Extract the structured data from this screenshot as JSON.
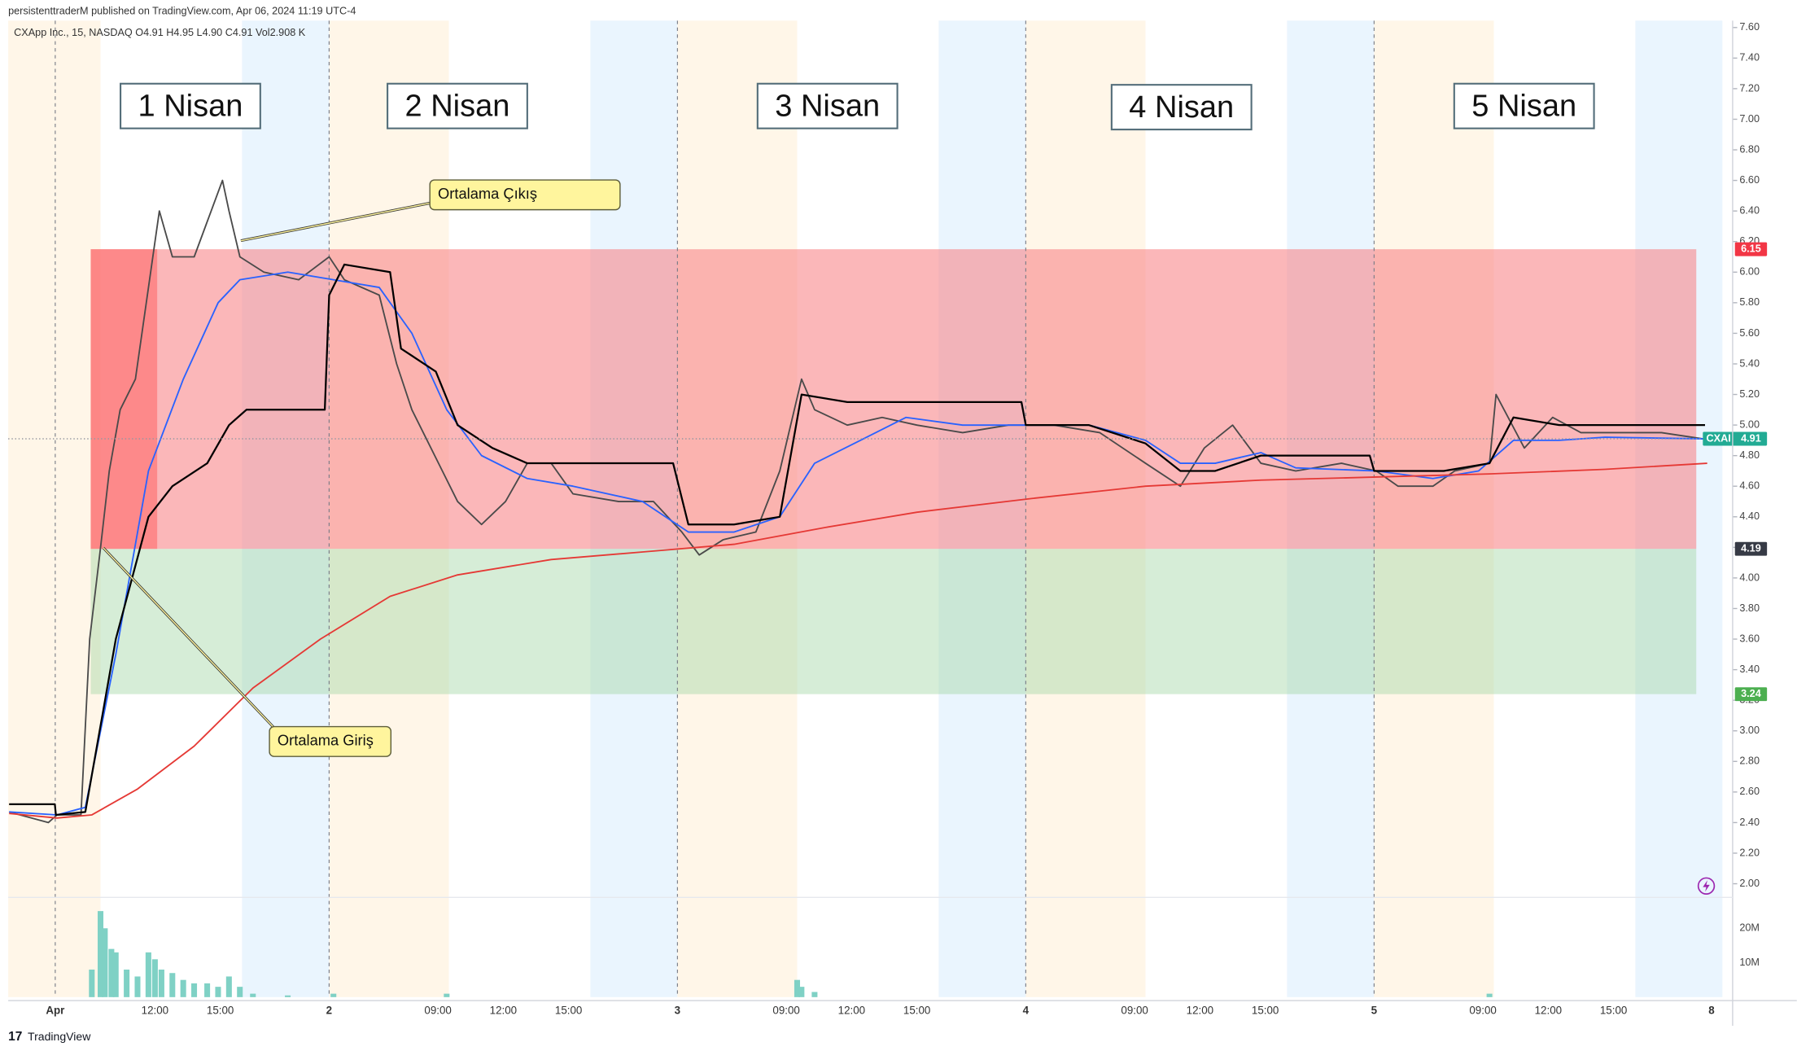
{
  "chart_data": {
    "type": "line",
    "header": "persistenttraderM published on TradingView.com, Apr 06, 2024 11:19 UTC-4",
    "legend_line": "CXApp Inc., 15, NASDAQ  O4.91  H4.95  L4.90  C4.91  Vol2.908 K",
    "footer": "TradingView",
    "day_labels": [
      "1 Nisan",
      "2 Nisan",
      "3 Nisan",
      "4 Nisan",
      "5 Nisan"
    ],
    "annotations": [
      "Ortalama Çıkış",
      "Ortalama Giriş"
    ],
    "xlim": [
      1.26,
      80.47
    ],
    "ylim": [
      1.918,
      7.645
    ],
    "xticks": [
      {
        "value": 3.42,
        "label": "Apr"
      },
      {
        "value": 8,
        "label": "12:00"
      },
      {
        "value": 11,
        "label": "15:00"
      },
      {
        "value": 16,
        "label": "2"
      },
      {
        "value": 21,
        "label": "09:00"
      },
      {
        "value": 24,
        "label": "12:00"
      },
      {
        "value": 27,
        "label": "15:00"
      },
      {
        "value": 32,
        "label": "3"
      },
      {
        "value": 37,
        "label": "09:00"
      },
      {
        "value": 40,
        "label": "12:00"
      },
      {
        "value": 43,
        "label": "15:00"
      },
      {
        "value": 48,
        "label": "4"
      },
      {
        "value": 53,
        "label": "09:00"
      },
      {
        "value": 56,
        "label": "12:00"
      },
      {
        "value": 59,
        "label": "15:00"
      },
      {
        "value": 64,
        "label": "5"
      },
      {
        "value": 69,
        "label": "09:00"
      },
      {
        "value": 72,
        "label": "12:00"
      },
      {
        "value": 75,
        "label": "15:00"
      },
      {
        "value": 79.5,
        "label": "8"
      }
    ],
    "yticks": [
      {
        "value": 2,
        "label": "2.00"
      },
      {
        "value": 2.2,
        "label": "2.20"
      },
      {
        "value": 2.4,
        "label": "2.40"
      },
      {
        "value": 2.6,
        "label": "2.60"
      },
      {
        "value": 2.8,
        "label": "2.80"
      },
      {
        "value": 3,
        "label": "3.00"
      },
      {
        "value": 3.2,
        "label": "3.20"
      },
      {
        "value": 3.4,
        "label": "3.40"
      },
      {
        "value": 3.6,
        "label": "3.60"
      },
      {
        "value": 3.8,
        "label": "3.80"
      },
      {
        "value": 4,
        "label": "4.00"
      },
      {
        "value": 4.2,
        "label": "4.20"
      },
      {
        "value": 4.4,
        "label": "4.40"
      },
      {
        "value": 4.6,
        "label": "4.60"
      },
      {
        "value": 4.8,
        "label": "4.80"
      },
      {
        "value": 5,
        "label": "5.00"
      },
      {
        "value": 5.2,
        "label": "5.20"
      },
      {
        "value": 5.4,
        "label": "5.40"
      },
      {
        "value": 5.6,
        "label": "5.60"
      },
      {
        "value": 5.8,
        "label": "5.80"
      },
      {
        "value": 6,
        "label": "6.00"
      },
      {
        "value": 6.2,
        "label": "6.20"
      },
      {
        "value": 6.4,
        "label": "6.40"
      },
      {
        "value": 6.6,
        "label": "6.60"
      },
      {
        "value": 6.8,
        "label": "6.80"
      },
      {
        "value": 7,
        "label": "7.00"
      },
      {
        "value": 7.2,
        "label": "7.20"
      },
      {
        "value": 7.4,
        "label": "7.40"
      },
      {
        "value": 7.6,
        "label": "7.60"
      }
    ],
    "zones": [
      {
        "top": 6.15,
        "bottom": 4.19,
        "xrange": [
          5.05,
          78.8
        ],
        "color": "#f77c80"
      },
      {
        "top": 4.19,
        "bottom": 3.24,
        "xrange": [
          5.05,
          78.8
        ],
        "color": "#a5d6a7"
      }
    ],
    "last": {
      "symbol": "CXAI",
      "value": 4.91,
      "color": "#22ab94"
    },
    "series": [
      {
        "name": "CXAI",
        "color": "#4a4a4a",
        "x": [
          1.3,
          3.1,
          3.5,
          4.6,
          5.0,
          5.5,
          5.9,
          6.4,
          7.1,
          7.7,
          8.2,
          8.8,
          9.8,
          11.1,
          11.4,
          11.9,
          13.0,
          14.6,
          16.0,
          16.7,
          18.3,
          19.1,
          19.8,
          21.2,
          21.9,
          23.0,
          24.1,
          25.1,
          26.2,
          27.2,
          29.3,
          30.9,
          32.2,
          33.0,
          34.1,
          35.6,
          36.7,
          37.7,
          38.3,
          39.8,
          41.4,
          43.0,
          45.1,
          47.2,
          49.3,
          51.4,
          53.5,
          55.1,
          56.2,
          57.5,
          58.8,
          60.4,
          62.5,
          64.1,
          65.1,
          66.7,
          67.7,
          69.3,
          69.6,
          70.9,
          72.2,
          73.5,
          75.1,
          77.2,
          79.1
        ],
        "values": [
          2.47,
          2.4,
          2.45,
          2.45,
          3.6,
          4.2,
          4.7,
          5.1,
          5.3,
          5.9,
          6.4,
          6.1,
          6.1,
          6.6,
          6.4,
          6.1,
          6.0,
          5.95,
          6.1,
          5.95,
          5.85,
          5.4,
          5.1,
          4.7,
          4.5,
          4.35,
          4.5,
          4.75,
          4.75,
          4.55,
          4.5,
          4.5,
          4.3,
          4.15,
          4.25,
          4.3,
          4.7,
          5.3,
          5.1,
          5.0,
          5.05,
          5.0,
          4.95,
          5.0,
          5.0,
          4.95,
          4.75,
          4.6,
          4.85,
          5.0,
          4.75,
          4.7,
          4.75,
          4.7,
          4.6,
          4.6,
          4.7,
          4.75,
          5.2,
          4.85,
          5.05,
          4.95,
          4.95,
          4.95,
          4.91
        ]
      },
      {
        "color": "#2962ff",
        "x": [
          1.3,
          3.5,
          4.8,
          6.2,
          7.7,
          9.3,
          10.9,
          11.9,
          14.1,
          16.2,
          18.3,
          19.8,
          21.4,
          23.0,
          25.1,
          27.2,
          30.4,
          32.5,
          34.6,
          36.7,
          38.3,
          40.4,
          42.5,
          45.1,
          48.3,
          50.9,
          53.5,
          55.1,
          56.7,
          58.8,
          60.4,
          64.1,
          66.7,
          68.8,
          70.4,
          72.5,
          74.6,
          79.2
        ],
        "values": [
          2.47,
          2.45,
          2.5,
          3.5,
          4.7,
          5.3,
          5.8,
          5.95,
          6.0,
          5.95,
          5.9,
          5.6,
          5.1,
          4.8,
          4.65,
          4.6,
          4.5,
          4.3,
          4.3,
          4.4,
          4.75,
          4.9,
          5.05,
          5.0,
          5.0,
          5.0,
          4.9,
          4.75,
          4.75,
          4.82,
          4.72,
          4.7,
          4.65,
          4.7,
          4.9,
          4.9,
          4.92,
          4.91
        ]
      },
      {
        "color": "#000000",
        "x": [
          1.3,
          3.4,
          3.45,
          4.8,
          6.2,
          7.7,
          8.8,
          10.4,
          11.4,
          12.2,
          15.8,
          16.0,
          16.7,
          18.8,
          19.3,
          20.9,
          21.9,
          23.5,
          25.1,
          28.3,
          31.8,
          32.5,
          34.6,
          36.7,
          37.7,
          39.8,
          43.0,
          47.8,
          48.0,
          50.9,
          53.5,
          55.1,
          56.7,
          58.8,
          63.8,
          64.0,
          67.2,
          69.3,
          70.4,
          72.5,
          79.2
        ],
        "values": [
          2.52,
          2.52,
          2.45,
          2.47,
          3.6,
          4.4,
          4.6,
          4.75,
          5.0,
          5.1,
          5.1,
          5.85,
          6.05,
          6.0,
          5.5,
          5.35,
          5.0,
          4.85,
          4.75,
          4.75,
          4.75,
          4.35,
          4.35,
          4.4,
          5.2,
          5.15,
          5.15,
          5.15,
          5.0,
          5.0,
          4.88,
          4.7,
          4.7,
          4.8,
          4.8,
          4.7,
          4.7,
          4.75,
          5.05,
          5.0,
          5.0
        ]
      },
      {
        "color": "#e53935",
        "x": [
          1.3,
          3.5,
          5.1,
          7.2,
          9.8,
          12.5,
          15.6,
          18.8,
          21.9,
          26.2,
          30.4,
          34.6,
          38.8,
          43.0,
          48.3,
          53.5,
          58.8,
          64.1,
          69.3,
          74.6,
          79.3
        ],
        "values": [
          2.46,
          2.43,
          2.45,
          2.62,
          2.9,
          3.28,
          3.6,
          3.88,
          4.02,
          4.12,
          4.17,
          4.22,
          4.33,
          4.43,
          4.52,
          4.6,
          4.64,
          4.66,
          4.68,
          4.71,
          4.75
        ]
      }
    ],
    "volume": {
      "color": "#7fd1c5",
      "ylim": [
        0,
        28300000
      ],
      "yticks": [
        {
          "value": 10000000,
          "label": "10M"
        },
        {
          "value": 20000000,
          "label": "20M"
        }
      ],
      "x": [
        5.1,
        5.5,
        5.7,
        6.0,
        6.2,
        6.7,
        7.2,
        7.7,
        8.0,
        8.3,
        8.8,
        9.3,
        9.8,
        10.4,
        10.9,
        11.4,
        11.9,
        12.5,
        14.1,
        16.2,
        21.4,
        37.5,
        37.7,
        38.3,
        69.3
      ],
      "values": [
        8000000,
        25000000,
        20000000,
        14000000,
        13000000,
        8000000,
        6000000,
        13000000,
        11000000,
        8000000,
        7000000,
        5000000,
        4000000,
        4000000,
        3000000,
        6000000,
        3000000,
        1000000,
        500000,
        1000000,
        1000000,
        5000000,
        3000000,
        1500000,
        1000000
      ]
    }
  }
}
